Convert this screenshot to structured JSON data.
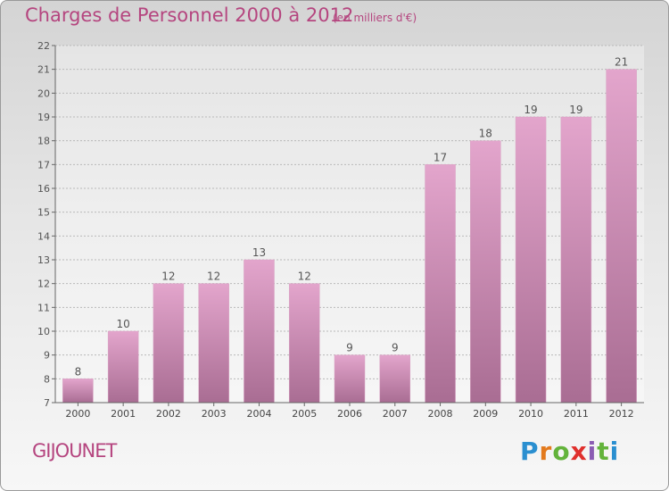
{
  "title": "Charges de Personnel 2000 à 2012",
  "subtitle": "(en milliers d'€)",
  "commune": "GIJOUNET",
  "logo": "Proxiti",
  "colors": {
    "text": "#b5457f",
    "bar_top": "#e3a5cc",
    "bar_bottom": "#a96d93"
  },
  "chart_data": {
    "type": "bar",
    "categories": [
      "2000",
      "2001",
      "2002",
      "2003",
      "2004",
      "2005",
      "2006",
      "2007",
      "2008",
      "2009",
      "2010",
      "2011",
      "2012"
    ],
    "values": [
      8,
      10,
      12,
      12,
      13,
      12,
      9,
      9,
      17,
      18,
      19,
      19,
      21
    ],
    "ylim": [
      7,
      22
    ],
    "yticks": [
      7,
      8,
      9,
      10,
      11,
      12,
      13,
      14,
      15,
      16,
      17,
      18,
      19,
      20,
      21,
      22
    ],
    "grid": true
  }
}
